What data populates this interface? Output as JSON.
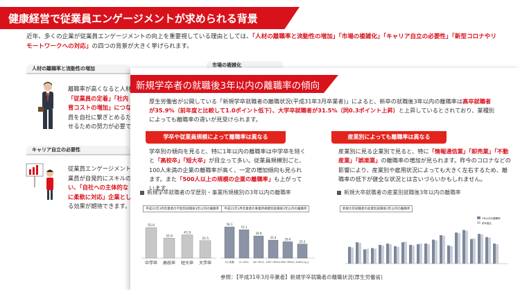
{
  "page": {
    "title": "健康経営で従業員エンゲージメントが求められる背景",
    "intro_pre": "近年、多くの企業が従業員エンゲージメントの向上を重要視している理由としては、",
    "intro_hl1": "「人材の離職率と流動性の増加」「市場の複雑化」「キャリア自立の必要性」「新型コロナやリモートワークへの対応」",
    "intro_post": "の四つの背景が大きく挙げられます。"
  },
  "sections": {
    "turnover_tag": "人材の離職率と流動性の増加",
    "market_tag": "市場の複雑化",
    "career_tag": "キャリア自立の必要性",
    "turnover_lines": [
      "離職率が高くなると人材",
      "「従業員の定着」「社内",
      "育コストの増加」につな",
      "員を自社に繋ぎとめるた",
      "せるための努力が必要で"
    ],
    "career_lines": [
      "従業員エンゲージメント",
      "業員が自発的にスキルの",
      "い、「自社への主体的な",
      "に柔軟に対応」企業とし",
      "る効果が期待できます。"
    ]
  },
  "overlay": {
    "title": "新規学卒者の就職後3年以内の離職率の傾向",
    "intro_a": "厚生労働省が公開している「新規学卒就職者の離職状況(平成31年3月卒業者)」によると、新卒の就職後3年以内の離職率は",
    "intro_hl_a": "高卒就職者が35.9%（前年度と比較して1.0ポイント低下）、大学卒就職者が31.5%（同0.3ポイント上昇）",
    "intro_b": "と上昇しているとされており、業種別によっても離職率の違いが見受けられます。",
    "left_head": "学卒や従業員規模によって離職率は異なる",
    "left_text_a": "学卒別の傾向を見ると、特に1年以内の離職率は中学卒を除くと",
    "left_hl_a": "「高校卒」「短大卒」",
    "left_text_b": "が目立って多い。従業員規模別ごと、100人未満の企業の離職率が高く、一定の増加傾向も見られます。また",
    "left_hl_b": "「500人以上の規模の企業の離職率」",
    "left_text_c": "も上がっています。",
    "right_head": "産業別によっても離職率は異なる",
    "right_text_a": "産業別に見る企業別で見ると、特に",
    "right_hl_a": "「情報通信業」「卸売業」「不動産業」「娯楽業」",
    "right_text_b": "の離職率の増加が見られます。昨今のコロナなどの影響により、産業別や雇用状況によっても大きく左右するため、離職率の低下が健全な状況とは言いづらいかもしれません。",
    "left_caption": "新規学卒就職者の学歴別・事業所規模別の3年以内の離職率",
    "right_caption": "新規大卒就職者の産業別就職後3年以内の離職率",
    "source": "参照：【平成31年3月卒業者】新規学卒就職者の離職状況(厚生労働省)",
    "accent": "#d9111b"
  },
  "chart_data": [
    {
      "type": "bar",
      "title": "平成31年3月卒業者の学歴別就職後3年以内の離職率",
      "categories": [
        "中学卒",
        "高校卒",
        "短大卒",
        "大学卒"
      ],
      "values": [
        55.0,
        35.9,
        41.9,
        31.5
      ],
      "value_labels": [
        "55.0",
        "35.9",
        "41.9",
        "31.5"
      ]
    },
    {
      "type": "bar",
      "title": "平成31年3月卒業者の事業所規模別就職後3年以内の離職率",
      "categories": [
        "5人未満",
        "5～29人",
        "30～99人",
        "100～499人",
        "500～999人",
        "1000人以上"
      ],
      "values": [
        56.1,
        51.1,
        39.9,
        32.4,
        29.4,
        25.3
      ],
      "value_labels": [
        "56.1",
        "51.1",
        "39.9",
        "32.4",
        "29.4",
        "25.3"
      ]
    },
    {
      "type": "bar",
      "title": "新規大卒就職者の産業別就職後3年以内の離職率",
      "series_names": [
        "3年以内の離職率",
        "前年度比"
      ],
      "values": [
        26,
        33,
        22,
        24,
        29,
        31,
        27,
        33,
        29,
        30,
        31,
        37,
        44,
        28,
        48,
        52,
        38,
        46,
        41,
        31
      ],
      "values2": [
        25,
        32,
        23,
        23,
        28,
        30,
        26,
        34,
        28,
        31,
        30,
        36,
        43,
        27,
        47,
        51,
        39,
        45,
        40,
        30
      ]
    }
  ]
}
